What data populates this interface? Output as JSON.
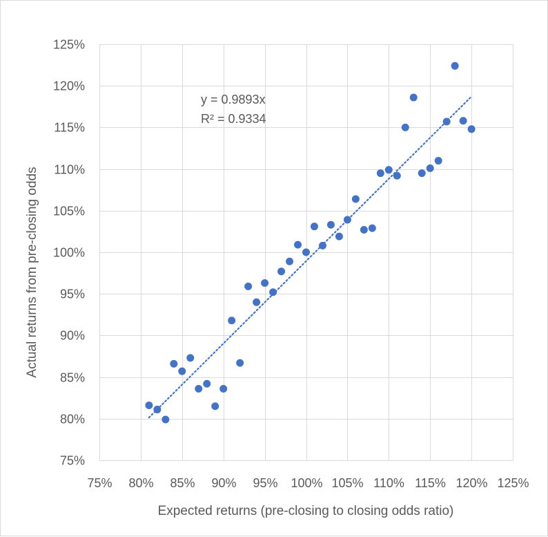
{
  "chart_data": {
    "type": "scatter",
    "xlabel": "Expected returns (pre-closing to closing odds ratio)",
    "ylabel": "Actual returns from pre-closing odds",
    "xlim": [
      0.75,
      1.25
    ],
    "ylim": [
      0.75,
      1.25
    ],
    "tick_step": 0.05,
    "x_tick_labels": [
      "75%",
      "80%",
      "85%",
      "90%",
      "95%",
      "100%",
      "105%",
      "110%",
      "115%",
      "120%",
      "125%"
    ],
    "y_tick_labels": [
      "75%",
      "80%",
      "85%",
      "90%",
      "95%",
      "100%",
      "105%",
      "110%",
      "115%",
      "120%",
      "125%"
    ],
    "grid": true,
    "marker_color": "#4472c4",
    "trendline": {
      "type": "linear-through-origin",
      "slope": 0.9893,
      "x_range": [
        0.81,
        1.2
      ],
      "style": "dotted",
      "color": "#4472c4"
    },
    "annotations": {
      "equation": "y = 0.9893x",
      "r_squared": "R² = 0.9334"
    },
    "points": [
      {
        "x": 0.81,
        "y": 0.816
      },
      {
        "x": 0.82,
        "y": 0.811
      },
      {
        "x": 0.83,
        "y": 0.799
      },
      {
        "x": 0.84,
        "y": 0.866
      },
      {
        "x": 0.85,
        "y": 0.857
      },
      {
        "x": 0.86,
        "y": 0.873
      },
      {
        "x": 0.87,
        "y": 0.836
      },
      {
        "x": 0.88,
        "y": 0.842
      },
      {
        "x": 0.89,
        "y": 0.815
      },
      {
        "x": 0.9,
        "y": 0.836
      },
      {
        "x": 0.91,
        "y": 0.918
      },
      {
        "x": 0.92,
        "y": 0.867
      },
      {
        "x": 0.93,
        "y": 0.959
      },
      {
        "x": 0.94,
        "y": 0.94
      },
      {
        "x": 0.95,
        "y": 0.963
      },
      {
        "x": 0.96,
        "y": 0.952
      },
      {
        "x": 0.97,
        "y": 0.977
      },
      {
        "x": 0.98,
        "y": 0.989
      },
      {
        "x": 0.99,
        "y": 1.009
      },
      {
        "x": 1.0,
        "y": 1.0
      },
      {
        "x": 1.01,
        "y": 1.031
      },
      {
        "x": 1.02,
        "y": 1.008
      },
      {
        "x": 1.03,
        "y": 1.033
      },
      {
        "x": 1.04,
        "y": 1.019
      },
      {
        "x": 1.05,
        "y": 1.039
      },
      {
        "x": 1.06,
        "y": 1.064
      },
      {
        "x": 1.07,
        "y": 1.027
      },
      {
        "x": 1.08,
        "y": 1.029
      },
      {
        "x": 1.09,
        "y": 1.095
      },
      {
        "x": 1.1,
        "y": 1.099
      },
      {
        "x": 1.11,
        "y": 1.092
      },
      {
        "x": 1.12,
        "y": 1.15
      },
      {
        "x": 1.13,
        "y": 1.186
      },
      {
        "x": 1.14,
        "y": 1.095
      },
      {
        "x": 1.15,
        "y": 1.101
      },
      {
        "x": 1.16,
        "y": 1.11
      },
      {
        "x": 1.17,
        "y": 1.157
      },
      {
        "x": 1.18,
        "y": 1.224
      },
      {
        "x": 1.19,
        "y": 1.158
      },
      {
        "x": 1.2,
        "y": 1.148
      }
    ]
  }
}
